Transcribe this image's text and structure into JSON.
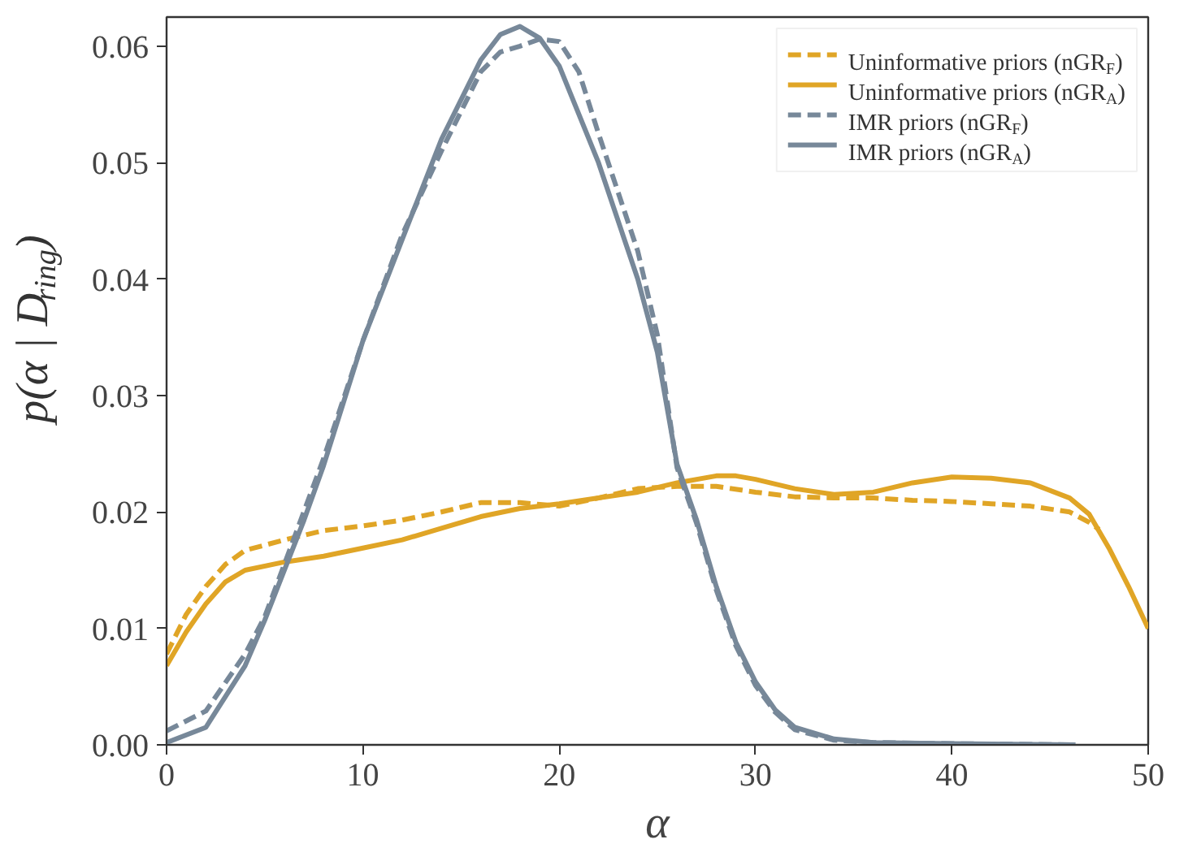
{
  "chart_data": {
    "type": "line",
    "xlabel": "α",
    "ylabel": "p(α | D$_{ring}$)",
    "xlim": [
      0,
      50
    ],
    "ylim": [
      0,
      0.0625
    ],
    "xticks": [
      0,
      10,
      20,
      30,
      40,
      50
    ],
    "yticks": [
      {
        "value": 0,
        "label": "0.00"
      },
      0.01,
      0.02,
      0.03,
      0.04,
      0.05,
      0.06
    ],
    "grid": false,
    "legend": "top right",
    "series": [
      {
        "name": "Uninformative priors (nGR$_{F}$)",
        "color": "#e0a526",
        "line_style": "dashed",
        "x": [
          0,
          1,
          2,
          3,
          4,
          6,
          8,
          10,
          12,
          14,
          16,
          18,
          20,
          22,
          24,
          26,
          28,
          30,
          32,
          34,
          36,
          38,
          40,
          42,
          44,
          46,
          47,
          47.5
        ],
        "values": [
          0.0078,
          0.0112,
          0.0136,
          0.0155,
          0.0167,
          0.0176,
          0.0184,
          0.0188,
          0.0193,
          0.02,
          0.0208,
          0.0208,
          0.0205,
          0.0212,
          0.022,
          0.0222,
          0.0222,
          0.0217,
          0.0213,
          0.0212,
          0.0212,
          0.021,
          0.0209,
          0.0207,
          0.0205,
          0.02,
          0.0191,
          0.0185
        ]
      },
      {
        "name": "Uninformative priors (nGR$_{A}$)",
        "color": "#e0a526",
        "line_style": "solid",
        "x": [
          0,
          1,
          2,
          3,
          4,
          6,
          8,
          10,
          12,
          14,
          16,
          18,
          20,
          22,
          24,
          26,
          28,
          29,
          30,
          32,
          34,
          36,
          38,
          40,
          42,
          44,
          46,
          47,
          48,
          49,
          50
        ],
        "values": [
          0.0068,
          0.0097,
          0.0121,
          0.014,
          0.015,
          0.0157,
          0.0162,
          0.0169,
          0.0176,
          0.0186,
          0.0196,
          0.0203,
          0.0207,
          0.0212,
          0.0217,
          0.0225,
          0.0231,
          0.0231,
          0.0228,
          0.022,
          0.0215,
          0.0217,
          0.0225,
          0.023,
          0.0229,
          0.0225,
          0.0212,
          0.0198,
          0.0169,
          0.0136,
          0.01
        ]
      },
      {
        "name": "IMR priors (nGR$_{F}$)",
        "color": "#778899",
        "line_style": "dashed",
        "x": [
          0,
          2,
          4,
          5,
          6,
          8,
          10,
          12,
          14,
          16,
          17,
          18,
          19,
          20,
          21,
          22,
          24,
          25,
          26,
          27,
          28,
          29,
          30,
          31,
          32,
          34,
          36,
          40,
          46.3
        ],
        "values": [
          0.0012,
          0.0029,
          0.0078,
          0.011,
          0.0155,
          0.0246,
          0.0347,
          0.0438,
          0.051,
          0.0578,
          0.0595,
          0.06,
          0.0606,
          0.0604,
          0.0578,
          0.0525,
          0.0424,
          0.0352,
          0.0238,
          0.019,
          0.0133,
          0.0085,
          0.0051,
          0.0028,
          0.0013,
          0.0004,
          0.0002,
          0.0001,
          0
        ]
      },
      {
        "name": "IMR priors (nGR$_{A}$)",
        "color": "#778899",
        "line_style": "solid",
        "x": [
          0,
          2,
          4,
          5,
          6,
          7,
          8,
          10,
          12,
          14,
          16,
          17,
          18,
          19,
          20,
          22,
          24,
          25,
          26,
          27,
          28,
          29,
          30,
          31,
          32,
          34,
          36,
          40,
          46.3
        ],
        "values": [
          0.0002,
          0.0015,
          0.0068,
          0.0107,
          0.015,
          0.0193,
          0.024,
          0.0347,
          0.0434,
          0.052,
          0.0588,
          0.061,
          0.0617,
          0.0607,
          0.0583,
          0.05,
          0.04,
          0.0337,
          0.0241,
          0.0193,
          0.0136,
          0.0088,
          0.0054,
          0.003,
          0.0015,
          0.0005,
          0.0002,
          0.0001,
          0
        ]
      }
    ]
  }
}
